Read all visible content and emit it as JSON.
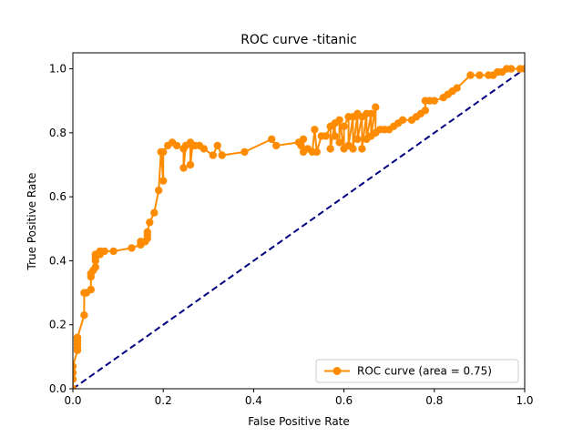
{
  "chart_data": {
    "type": "line",
    "title": "ROC curve -titanic",
    "xlabel": "False Positive Rate",
    "ylabel": "True Positive Rate",
    "xlim": [
      0.0,
      1.0
    ],
    "ylim": [
      0.0,
      1.05
    ],
    "xticks": [
      "0.0",
      "0.2",
      "0.4",
      "0.6",
      "0.8",
      "1.0"
    ],
    "yticks": [
      "0.0",
      "0.2",
      "0.4",
      "0.6",
      "0.8",
      "1.0"
    ],
    "grid": false,
    "legend_position": "lower-right",
    "series": [
      {
        "name": "ROC curve (area = 0.75)",
        "color": "#ff8c00",
        "marker": "circle",
        "x": [
          0.0,
          0.0,
          0.0,
          0.0,
          0.01,
          0.01,
          0.01,
          0.01,
          0.01,
          0.01,
          0.025,
          0.025,
          0.03,
          0.04,
          0.04,
          0.04,
          0.045,
          0.05,
          0.05,
          0.05,
          0.05,
          0.06,
          0.06,
          0.07,
          0.09,
          0.13,
          0.15,
          0.15,
          0.16,
          0.165,
          0.165,
          0.165,
          0.17,
          0.18,
          0.19,
          0.195,
          0.2,
          0.2,
          0.21,
          0.22,
          0.23,
          0.245,
          0.245,
          0.25,
          0.26,
          0.26,
          0.265,
          0.27,
          0.28,
          0.29,
          0.31,
          0.32,
          0.33,
          0.38,
          0.44,
          0.45,
          0.5,
          0.505,
          0.51,
          0.51,
          0.52,
          0.53,
          0.535,
          0.54,
          0.55,
          0.56,
          0.57,
          0.57,
          0.58,
          0.58,
          0.59,
          0.59,
          0.6,
          0.6,
          0.61,
          0.61,
          0.62,
          0.62,
          0.63,
          0.63,
          0.64,
          0.64,
          0.65,
          0.65,
          0.66,
          0.66,
          0.67,
          0.67,
          0.68,
          0.69,
          0.7,
          0.71,
          0.72,
          0.73,
          0.75,
          0.76,
          0.77,
          0.78,
          0.78,
          0.79,
          0.8,
          0.82,
          0.83,
          0.84,
          0.85,
          0.88,
          0.9,
          0.92,
          0.93,
          0.94,
          0.95,
          0.96,
          0.97,
          0.99,
          1.0
        ],
        "y": [
          0.0,
          0.03,
          0.05,
          0.07,
          0.12,
          0.13,
          0.14,
          0.15,
          0.16,
          0.16,
          0.23,
          0.3,
          0.3,
          0.31,
          0.35,
          0.36,
          0.37,
          0.38,
          0.4,
          0.41,
          0.42,
          0.42,
          0.43,
          0.43,
          0.43,
          0.44,
          0.45,
          0.46,
          0.46,
          0.47,
          0.48,
          0.49,
          0.52,
          0.55,
          0.62,
          0.74,
          0.65,
          0.74,
          0.76,
          0.77,
          0.76,
          0.75,
          0.69,
          0.76,
          0.77,
          0.7,
          0.76,
          0.76,
          0.76,
          0.75,
          0.73,
          0.76,
          0.73,
          0.74,
          0.78,
          0.76,
          0.77,
          0.76,
          0.78,
          0.74,
          0.75,
          0.74,
          0.81,
          0.74,
          0.79,
          0.79,
          0.82,
          0.75,
          0.83,
          0.79,
          0.77,
          0.84,
          0.75,
          0.82,
          0.85,
          0.76,
          0.85,
          0.75,
          0.86,
          0.78,
          0.85,
          0.75,
          0.86,
          0.78,
          0.86,
          0.79,
          0.88,
          0.8,
          0.81,
          0.81,
          0.81,
          0.82,
          0.83,
          0.84,
          0.84,
          0.85,
          0.86,
          0.87,
          0.9,
          0.9,
          0.9,
          0.91,
          0.92,
          0.93,
          0.94,
          0.98,
          0.98,
          0.98,
          0.98,
          0.99,
          0.99,
          1.0,
          1.0,
          1.0,
          1.0
        ]
      },
      {
        "color": "#000080",
        "style": "dashed",
        "x": [
          0.0,
          1.0
        ],
        "y": [
          0.0,
          1.0
        ]
      }
    ]
  }
}
